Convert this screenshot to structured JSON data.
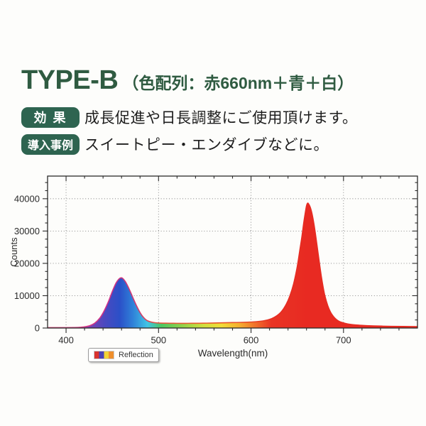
{
  "page": {
    "background": "#fdfdfb"
  },
  "header": {
    "model": "TYPE-B",
    "subtitle": "（色配列：赤660nm＋青＋白）",
    "accent_color": "#2f5b41"
  },
  "info_rows": [
    {
      "badge": "効 果",
      "text": "成長促進や日長調整にご使用頂けます。"
    },
    {
      "badge": "導入事例",
      "text": "スイートピー・エンダイブなどに。"
    }
  ],
  "badge_color": "#2e6450",
  "chart_data": {
    "type": "area",
    "title": "",
    "xlabel": "Wavelength(nm)",
    "ylabel": "Counts",
    "xlim": [
      380,
      780
    ],
    "ylim": [
      0,
      47000
    ],
    "xticks": [
      400,
      500,
      600,
      700
    ],
    "yticks": [
      0,
      10000,
      20000,
      30000,
      40000
    ],
    "x_minor_step": 20,
    "y_minor_step": 2500,
    "grid": "dotted",
    "grid_color": "#7d7d7d",
    "axis_color": "#2a2a2a",
    "legend": {
      "label": "Reflection",
      "swatch_colors": [
        "#d8332e",
        "#4b42b6",
        "#f2d435",
        "#ef8f2d"
      ],
      "position": "bottom-left"
    },
    "series_name": "Reflection",
    "peaks": [
      {
        "wavelength": 459,
        "counts": 15500,
        "band": "blue"
      },
      {
        "wavelength": 660,
        "counts": 38600,
        "band": "red"
      }
    ],
    "points": [
      [
        380,
        120
      ],
      [
        390,
        125
      ],
      [
        400,
        135
      ],
      [
        408,
        150
      ],
      [
        414,
        200
      ],
      [
        420,
        380
      ],
      [
        426,
        780
      ],
      [
        431,
        1500
      ],
      [
        436,
        2900
      ],
      [
        441,
        5200
      ],
      [
        446,
        8300
      ],
      [
        450,
        11300
      ],
      [
        454,
        13900
      ],
      [
        457,
        15100
      ],
      [
        459,
        15500
      ],
      [
        461,
        15400
      ],
      [
        464,
        14400
      ],
      [
        467,
        12800
      ],
      [
        470,
        10900
      ],
      [
        473,
        8900
      ],
      [
        476,
        7000
      ],
      [
        479,
        5300
      ],
      [
        482,
        3900
      ],
      [
        485,
        2900
      ],
      [
        488,
        2250
      ],
      [
        492,
        1850
      ],
      [
        496,
        1650
      ],
      [
        500,
        1560
      ],
      [
        508,
        1490
      ],
      [
        516,
        1460
      ],
      [
        524,
        1450
      ],
      [
        532,
        1455
      ],
      [
        540,
        1470
      ],
      [
        548,
        1490
      ],
      [
        556,
        1530
      ],
      [
        564,
        1580
      ],
      [
        572,
        1630
      ],
      [
        580,
        1680
      ],
      [
        588,
        1730
      ],
      [
        596,
        1800
      ],
      [
        602,
        1880
      ],
      [
        608,
        2020
      ],
      [
        613,
        2200
      ],
      [
        618,
        2500
      ],
      [
        623,
        3000
      ],
      [
        628,
        3800
      ],
      [
        633,
        5100
      ],
      [
        638,
        7300
      ],
      [
        642,
        9900
      ],
      [
        646,
        13600
      ],
      [
        650,
        19000
      ],
      [
        653,
        24500
      ],
      [
        655,
        28200
      ],
      [
        657,
        32500
      ],
      [
        659,
        36200
      ],
      [
        660,
        37800
      ],
      [
        661,
        38550
      ],
      [
        662,
        38500
      ],
      [
        664,
        37400
      ],
      [
        666,
        35300
      ],
      [
        668,
        32200
      ],
      [
        670,
        28400
      ],
      [
        672,
        24200
      ],
      [
        674,
        20000
      ],
      [
        676,
        16000
      ],
      [
        678,
        12600
      ],
      [
        680,
        9800
      ],
      [
        683,
        6900
      ],
      [
        686,
        4900
      ],
      [
        689,
        3600
      ],
      [
        692,
        2700
      ],
      [
        695,
        2100
      ],
      [
        698,
        1750
      ],
      [
        702,
        1430
      ],
      [
        707,
        1150
      ],
      [
        712,
        980
      ],
      [
        718,
        850
      ],
      [
        725,
        740
      ],
      [
        733,
        650
      ],
      [
        742,
        580
      ],
      [
        752,
        520
      ],
      [
        764,
        470
      ],
      [
        780,
        420
      ]
    ],
    "fill_stops": [
      [
        380,
        "#c93a92"
      ],
      [
        420,
        "#8a3fae"
      ],
      [
        442,
        "#4a49c0"
      ],
      [
        458,
        "#2b50c8"
      ],
      [
        472,
        "#2f80d8"
      ],
      [
        488,
        "#41c4e6"
      ],
      [
        503,
        "#4cc763"
      ],
      [
        525,
        "#8fd24b"
      ],
      [
        548,
        "#cfdf3e"
      ],
      [
        568,
        "#f1dd38"
      ],
      [
        588,
        "#f5ad2f"
      ],
      [
        605,
        "#f0702a"
      ],
      [
        622,
        "#e93425"
      ],
      [
        660,
        "#e82a22"
      ],
      [
        780,
        "#e82a22"
      ]
    ],
    "stroke_stops": [
      [
        380,
        "#e2497e"
      ],
      [
        445,
        "#ce2f88"
      ],
      [
        478,
        "#d03a70"
      ],
      [
        500,
        "#df5442"
      ],
      [
        545,
        "#e85e2e"
      ],
      [
        600,
        "#e74928"
      ],
      [
        625,
        "#e62b22"
      ],
      [
        780,
        "#e62b22"
      ]
    ]
  }
}
